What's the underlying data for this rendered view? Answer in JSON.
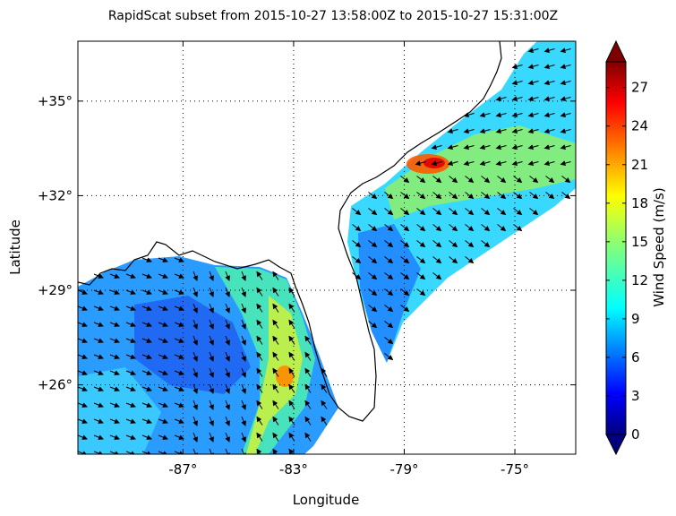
{
  "chart_data": {
    "type": "heatmap",
    "title": "RapidScat subset from 2015-10-27 13:58:00Z to 2015-10-27 15:31:00Z",
    "xlabel": "Longitude",
    "ylabel": "Latitude",
    "xlim": [
      -90.8,
      -72.8
    ],
    "ylim": [
      23.8,
      36.9
    ],
    "x_ticks": [
      -87,
      -83,
      -79,
      -75
    ],
    "x_tick_labels": [
      "-87°",
      "-83°",
      "-79°",
      "-75°"
    ],
    "y_ticks": [
      35,
      32,
      29,
      26
    ],
    "y_tick_labels": [
      "+35°",
      "+32°",
      "+29°",
      "+26°"
    ],
    "grid": true,
    "colorbar": {
      "label": "Wind Speed (m/s)",
      "min": 0,
      "max": 29,
      "ticks": [
        0,
        3,
        6,
        9,
        12,
        15,
        18,
        21,
        24,
        27
      ],
      "tick_labels": [
        "0",
        "3",
        "6",
        "9",
        "12",
        "15",
        "18",
        "21",
        "24",
        "27"
      ],
      "extend": "both",
      "colormap": "jet"
    }
  }
}
